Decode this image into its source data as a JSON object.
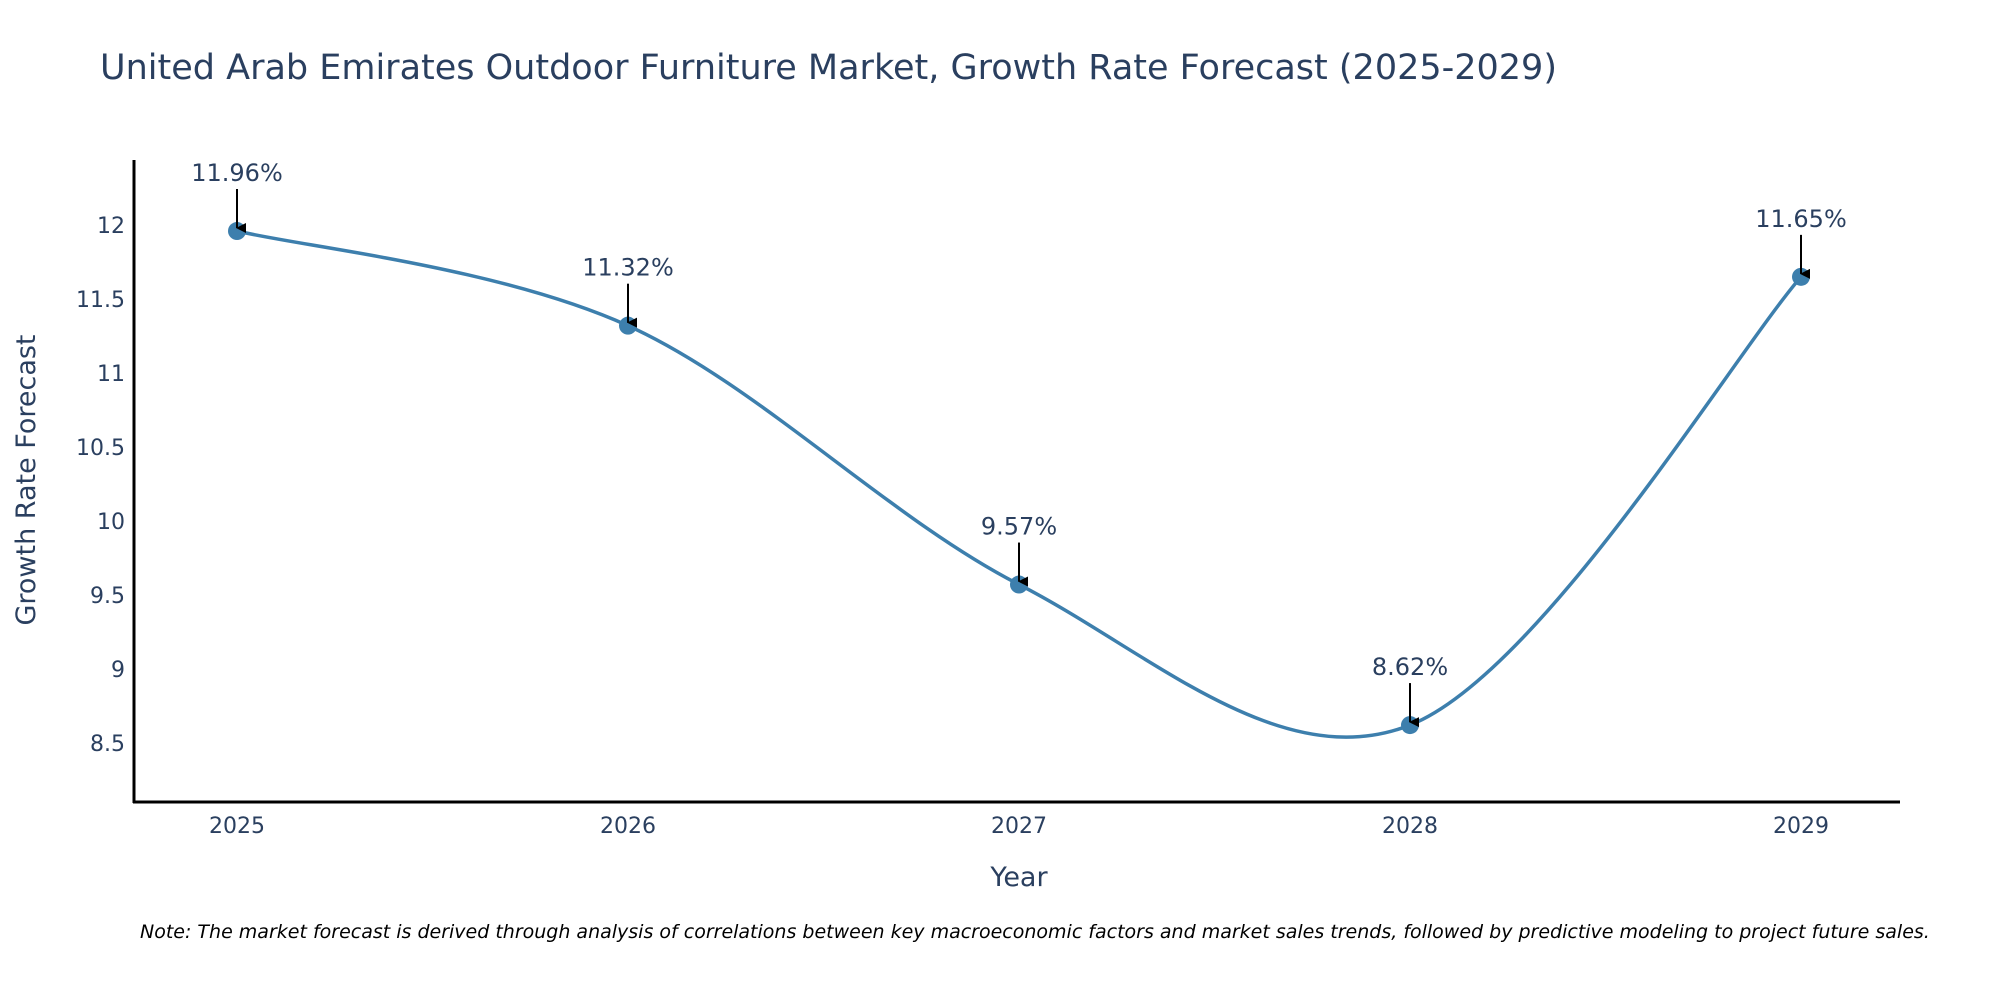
{
  "chart_data": {
    "type": "line",
    "title": "United Arab Emirates Outdoor Furniture Market, Growth Rate Forecast (2025-2029)",
    "xlabel": "Year",
    "ylabel": "Growth Rate Forecast",
    "categories": [
      "2025",
      "2026",
      "2027",
      "2028",
      "2029"
    ],
    "values": [
      11.96,
      11.32,
      9.57,
      8.62,
      11.65
    ],
    "data_labels": [
      "11.96%",
      "11.32%",
      "9.57%",
      "8.62%",
      "11.65%"
    ],
    "y_ticks": [
      8.5,
      9,
      9.5,
      10,
      10.5,
      11,
      11.5,
      12
    ],
    "y_tick_labels": [
      "8.5",
      "9",
      "9.5",
      "10",
      "10.5",
      "11",
      "11.5",
      "12"
    ],
    "ylim": [
      8.1,
      12.44
    ],
    "line_shape": "spline",
    "grid": false,
    "line_color": "#3d7fad",
    "marker_color": "#3d7fad",
    "axis_color": "#000000"
  },
  "note": "Note: The market forecast is derived through analysis of correlations between key macroeconomic factors and market sales trends, followed by predictive modeling to project future sales."
}
